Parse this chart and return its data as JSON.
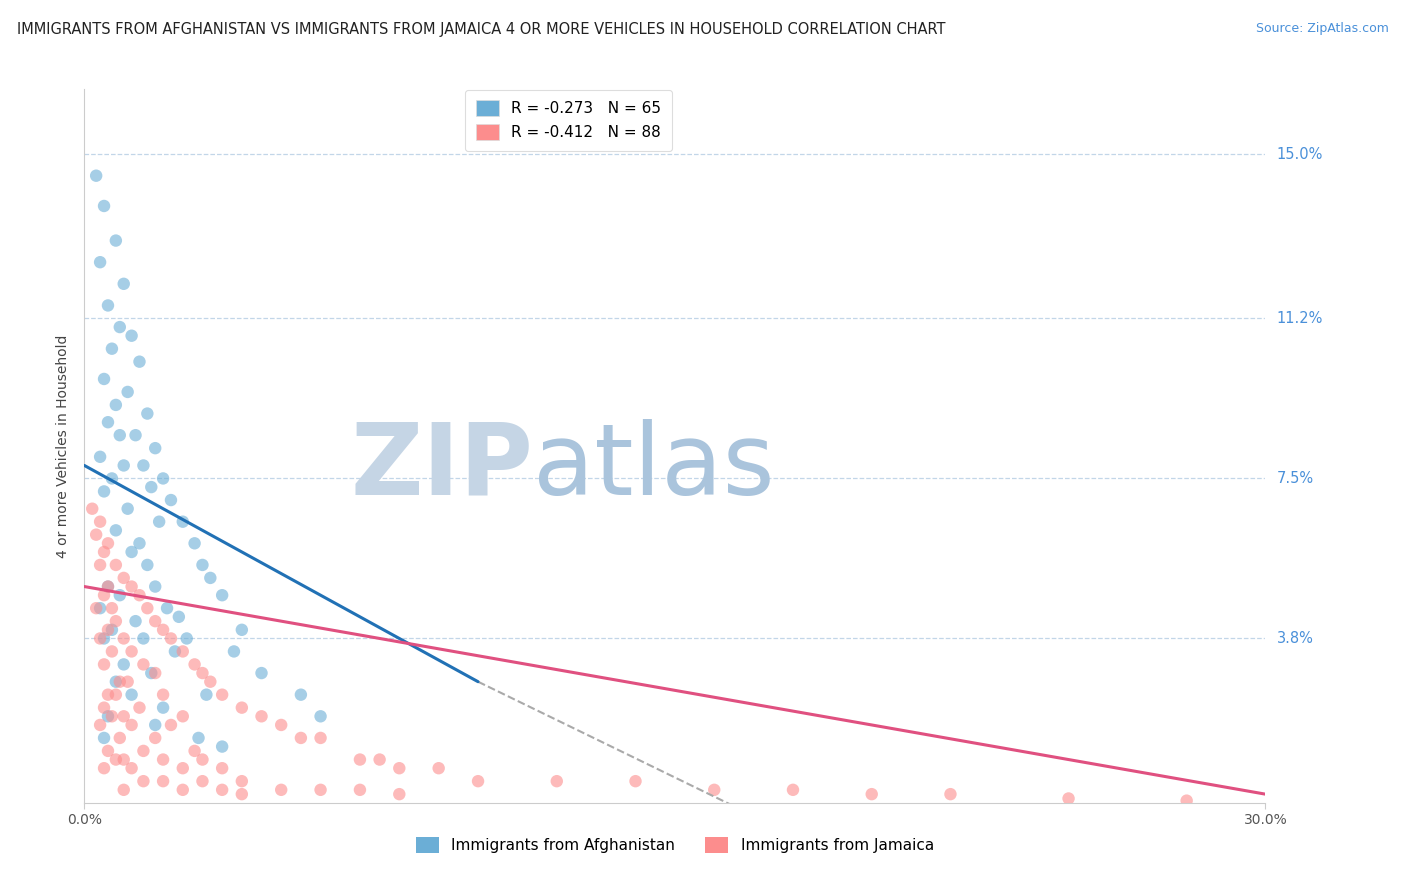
{
  "title": "IMMIGRANTS FROM AFGHANISTAN VS IMMIGRANTS FROM JAMAICA 4 OR MORE VEHICLES IN HOUSEHOLD CORRELATION CHART",
  "source": "Source: ZipAtlas.com",
  "ylabel": "4 or more Vehicles in Household",
  "x_min": 0.0,
  "x_max": 30.0,
  "y_min": 0.0,
  "y_max": 16.5,
  "y_ticks_labels": [
    3.8,
    7.5,
    11.2,
    15.0
  ],
  "afghanistan_color": "#6baed6",
  "jamaica_color": "#fc8d8d",
  "afghanistan_line_color": "#2171b5",
  "jamaica_line_color": "#e05080",
  "afghanistan_R": -0.273,
  "afghanistan_N": 65,
  "jamaica_R": -0.412,
  "jamaica_N": 88,
  "grid_color": "#b8cfe4",
  "watermark_zip": "ZIP",
  "watermark_atlas": "atlas",
  "watermark_color_zip": "#c5d5e5",
  "watermark_color_atlas": "#aac4dc",
  "background_color": "#ffffff",
  "title_fontsize": 10.5,
  "source_fontsize": 9,
  "tick_label_fontsize": 10,
  "legend_fontsize": 11,
  "ylabel_fontsize": 10,
  "afg_line_x0": 0.0,
  "afg_line_y0": 7.8,
  "afg_line_x1": 10.0,
  "afg_line_y1": 2.8,
  "afg_dash_x0": 10.0,
  "afg_dash_y0": 2.8,
  "afg_dash_x1": 17.0,
  "afg_dash_y1": -0.3,
  "jam_line_x0": 0.0,
  "jam_line_y0": 5.0,
  "jam_line_x1": 30.0,
  "jam_line_y1": 0.2,
  "afghanistan_scatter_x": [
    0.3,
    0.5,
    0.8,
    0.4,
    1.0,
    0.6,
    0.9,
    1.2,
    0.7,
    1.4,
    0.5,
    1.1,
    0.8,
    1.6,
    0.6,
    1.3,
    0.9,
    1.8,
    0.4,
    1.5,
    1.0,
    2.0,
    0.7,
    1.7,
    0.5,
    2.2,
    1.1,
    1.9,
    2.5,
    0.8,
    2.8,
    1.4,
    1.2,
    3.0,
    1.6,
    3.2,
    0.6,
    1.8,
    0.9,
    3.5,
    2.1,
    0.4,
    2.4,
    1.3,
    4.0,
    2.6,
    0.7,
    1.5,
    0.5,
    3.8,
    2.3,
    1.0,
    4.5,
    1.7,
    0.8,
    3.1,
    1.2,
    5.5,
    2.0,
    0.6,
    6.0,
    1.8,
    2.9,
    0.5,
    3.5
  ],
  "afghanistan_scatter_y": [
    14.5,
    13.8,
    13.0,
    12.5,
    12.0,
    11.5,
    11.0,
    10.8,
    10.5,
    10.2,
    9.8,
    9.5,
    9.2,
    9.0,
    8.8,
    8.5,
    8.5,
    8.2,
    8.0,
    7.8,
    7.8,
    7.5,
    7.5,
    7.3,
    7.2,
    7.0,
    6.8,
    6.5,
    6.5,
    6.3,
    6.0,
    6.0,
    5.8,
    5.5,
    5.5,
    5.2,
    5.0,
    5.0,
    4.8,
    4.8,
    4.5,
    4.5,
    4.3,
    4.2,
    4.0,
    3.8,
    4.0,
    3.8,
    3.8,
    3.5,
    3.5,
    3.2,
    3.0,
    3.0,
    2.8,
    2.5,
    2.5,
    2.5,
    2.2,
    2.0,
    2.0,
    1.8,
    1.5,
    1.5,
    1.3
  ],
  "jamaica_scatter_x": [
    0.2,
    0.4,
    0.3,
    0.6,
    0.5,
    0.8,
    0.4,
    1.0,
    0.6,
    1.2,
    0.5,
    1.4,
    0.7,
    1.6,
    0.3,
    1.8,
    0.8,
    2.0,
    0.6,
    2.2,
    1.0,
    0.4,
    2.5,
    1.2,
    0.7,
    2.8,
    1.5,
    0.5,
    3.0,
    1.8,
    0.9,
    3.2,
    1.1,
    0.6,
    3.5,
    2.0,
    0.8,
    4.0,
    1.4,
    0.5,
    4.5,
    2.5,
    1.0,
    0.7,
    5.0,
    2.2,
    1.2,
    0.4,
    5.5,
    1.8,
    0.9,
    6.0,
    2.8,
    1.5,
    0.6,
    7.0,
    3.0,
    1.0,
    7.5,
    2.0,
    0.8,
    8.0,
    3.5,
    1.2,
    9.0,
    2.5,
    0.5,
    10.0,
    4.0,
    1.5,
    12.0,
    3.0,
    2.0,
    14.0,
    5.0,
    1.0,
    16.0,
    6.0,
    2.5,
    18.0,
    7.0,
    3.5,
    20.0,
    8.0,
    4.0,
    22.0,
    25.0,
    28.0
  ],
  "jamaica_scatter_y": [
    6.8,
    6.5,
    6.2,
    6.0,
    5.8,
    5.5,
    5.5,
    5.2,
    5.0,
    5.0,
    4.8,
    4.8,
    4.5,
    4.5,
    4.5,
    4.2,
    4.2,
    4.0,
    4.0,
    3.8,
    3.8,
    3.8,
    3.5,
    3.5,
    3.5,
    3.2,
    3.2,
    3.2,
    3.0,
    3.0,
    2.8,
    2.8,
    2.8,
    2.5,
    2.5,
    2.5,
    2.5,
    2.2,
    2.2,
    2.2,
    2.0,
    2.0,
    2.0,
    2.0,
    1.8,
    1.8,
    1.8,
    1.8,
    1.5,
    1.5,
    1.5,
    1.5,
    1.2,
    1.2,
    1.2,
    1.0,
    1.0,
    1.0,
    1.0,
    1.0,
    1.0,
    0.8,
    0.8,
    0.8,
    0.8,
    0.8,
    0.8,
    0.5,
    0.5,
    0.5,
    0.5,
    0.5,
    0.5,
    0.5,
    0.3,
    0.3,
    0.3,
    0.3,
    0.3,
    0.3,
    0.3,
    0.3,
    0.2,
    0.2,
    0.2,
    0.2,
    0.1,
    0.05
  ]
}
